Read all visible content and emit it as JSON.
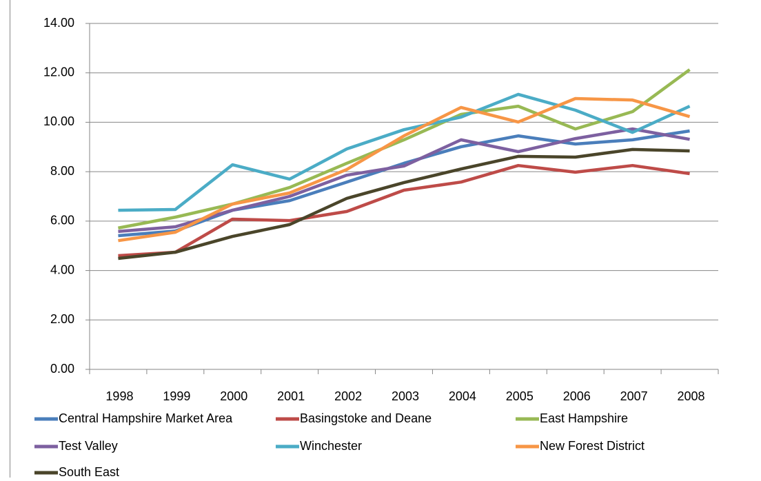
{
  "chart_data": {
    "type": "line",
    "categories": [
      "1998",
      "1999",
      "2000",
      "2001",
      "2002",
      "2003",
      "2004",
      "2005",
      "2006",
      "2007",
      "2008"
    ],
    "series": [
      {
        "name": "Central Hampshire Market Area",
        "color": "#4a7ebb",
        "values": [
          5.41,
          5.6,
          6.44,
          6.83,
          7.58,
          8.34,
          9.01,
          9.45,
          9.12,
          9.29,
          9.65
        ]
      },
      {
        "name": "Basingstoke and Deane",
        "color": "#be4b48",
        "values": [
          4.6,
          4.74,
          6.08,
          6.02,
          6.39,
          7.25,
          7.58,
          8.25,
          7.98,
          8.25,
          7.92
        ]
      },
      {
        "name": "East Hampshire",
        "color": "#98b954",
        "values": [
          5.72,
          6.16,
          6.69,
          7.36,
          8.34,
          9.29,
          10.32,
          10.65,
          9.73,
          10.43,
          12.13
        ]
      },
      {
        "name": "Test Valley",
        "color": "#7d60a0",
        "values": [
          5.58,
          5.77,
          6.44,
          7.0,
          7.86,
          8.23,
          9.29,
          8.81,
          9.34,
          9.73,
          9.31
        ]
      },
      {
        "name": "Winchester",
        "color": "#4bacc6",
        "values": [
          6.44,
          6.47,
          8.28,
          7.7,
          8.92,
          9.7,
          10.21,
          11.13,
          10.49,
          9.59,
          10.65
        ]
      },
      {
        "name": "New Forest District",
        "color": "#f79646",
        "values": [
          5.21,
          5.55,
          6.69,
          7.14,
          8.09,
          9.45,
          10.6,
          10.01,
          10.96,
          10.9,
          10.23
        ]
      },
      {
        "name": "South East",
        "color": "#4a452a",
        "values": [
          4.49,
          4.74,
          5.38,
          5.86,
          6.92,
          7.56,
          8.11,
          8.62,
          8.59,
          8.9,
          8.84
        ]
      }
    ],
    "ylim": [
      0,
      14
    ],
    "yticks": [
      {
        "value": 0,
        "label": "0.00"
      },
      {
        "value": 2,
        "label": "2.00"
      },
      {
        "value": 4,
        "label": "4.00"
      },
      {
        "value": 6,
        "label": "6.00"
      },
      {
        "value": 8,
        "label": "8.00"
      },
      {
        "value": 10,
        "label": "10.00"
      },
      {
        "value": 12,
        "label": "12.00"
      },
      {
        "value": 14,
        "label": "14.00"
      }
    ],
    "grid": true
  }
}
